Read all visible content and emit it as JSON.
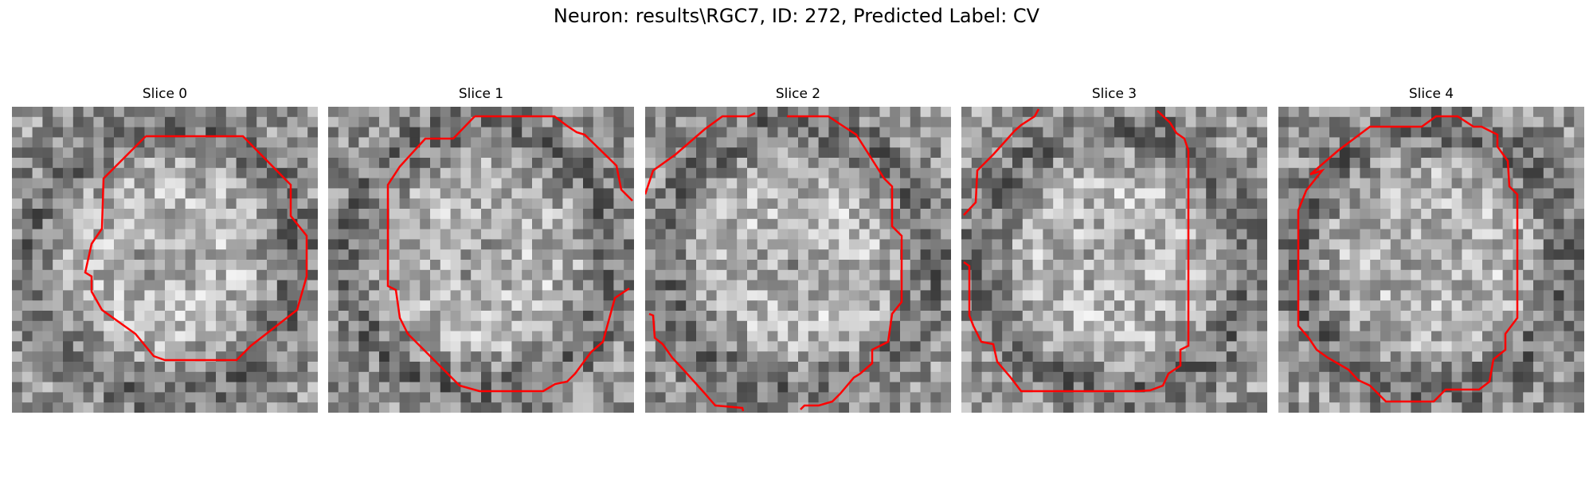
{
  "figure": {
    "title": "Neuron: results\\RGC7, ID: 272, Predicted Label: CV"
  },
  "panels": [
    {
      "title": "Slice 0",
      "seed": 11,
      "contour_color": "#ff0000"
    },
    {
      "title": "Slice 1",
      "seed": 23,
      "contour_color": "#ff0000"
    },
    {
      "title": "Slice 2",
      "seed": 37,
      "contour_color": "#ff0000"
    },
    {
      "title": "Slice 3",
      "seed": 41,
      "contour_color": "#ff0000"
    },
    {
      "title": "Slice 4",
      "seed": 59,
      "contour_color": "#ff0000"
    }
  ],
  "image_grid": {
    "cols": 30,
    "rows": 30,
    "colormap": "gray"
  }
}
